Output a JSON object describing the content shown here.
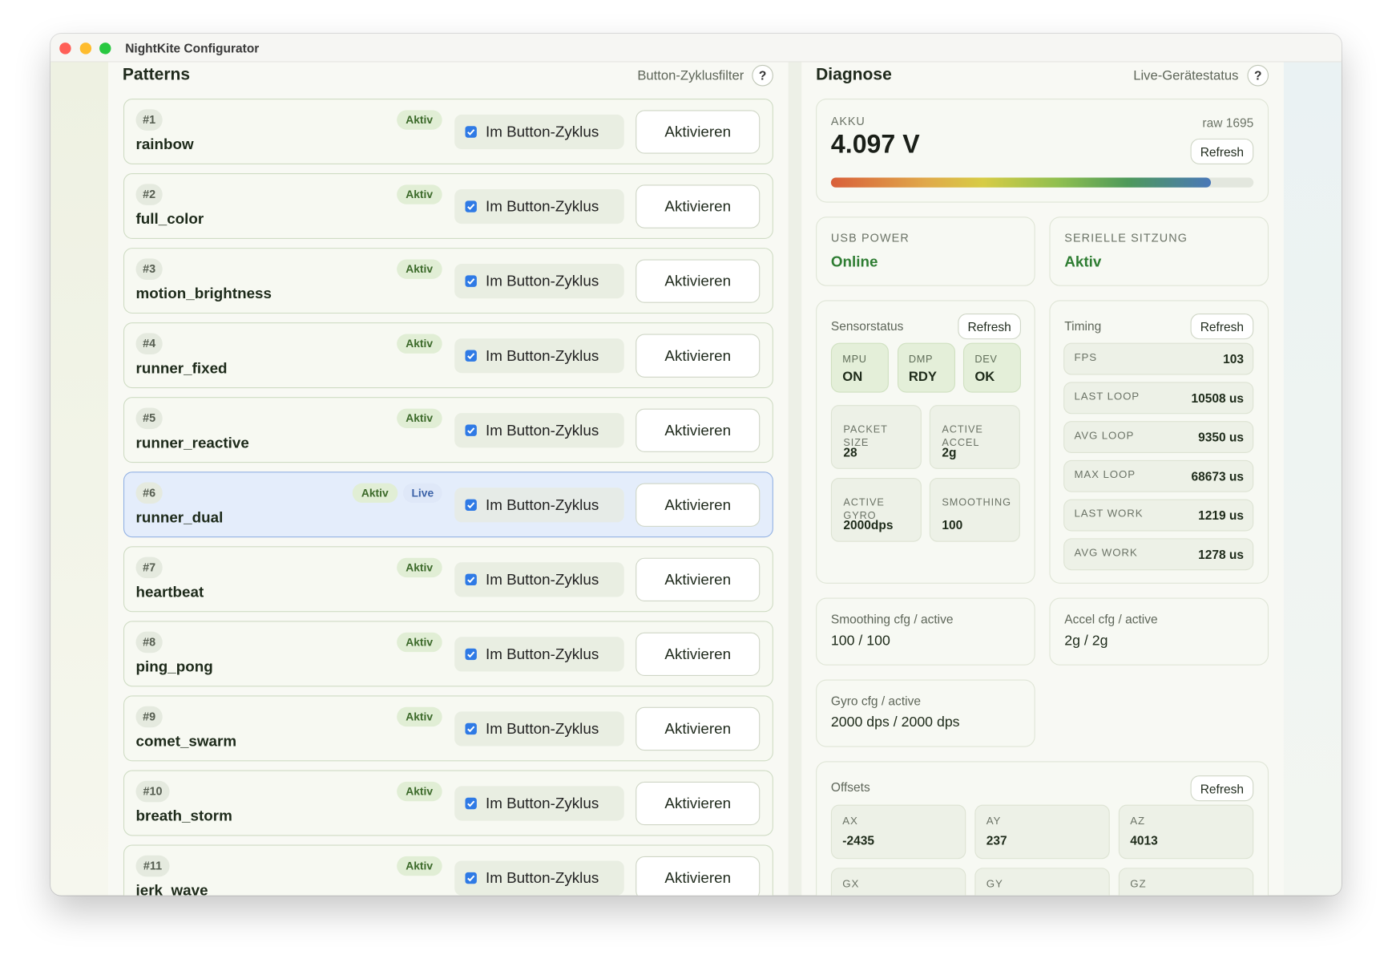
{
  "window": {
    "title": "NightKite Configurator"
  },
  "patterns": {
    "title": "Patterns",
    "filter_label": "Button-Zyklusfilter",
    "help": "?",
    "items": [
      {
        "number": "#1",
        "name": "rainbow",
        "badges": [
          "Aktiv"
        ],
        "checkbox": "Im Button-Zyklus",
        "checked": true,
        "button": "Aktivieren",
        "highlighted": false
      },
      {
        "number": "#2",
        "name": "full_color",
        "badges": [
          "Aktiv"
        ],
        "checkbox": "Im Button-Zyklus",
        "checked": true,
        "button": "Aktivieren",
        "highlighted": false
      },
      {
        "number": "#3",
        "name": "motion_brightness",
        "badges": [
          "Aktiv"
        ],
        "checkbox": "Im Button-Zyklus",
        "checked": true,
        "button": "Aktivieren",
        "highlighted": false
      },
      {
        "number": "#4",
        "name": "runner_fixed",
        "badges": [
          "Aktiv"
        ],
        "checkbox": "Im Button-Zyklus",
        "checked": true,
        "button": "Aktivieren",
        "highlighted": false
      },
      {
        "number": "#5",
        "name": "runner_reactive",
        "badges": [
          "Aktiv"
        ],
        "checkbox": "Im Button-Zyklus",
        "checked": true,
        "button": "Aktivieren",
        "highlighted": false
      },
      {
        "number": "#6",
        "name": "runner_dual",
        "badges": [
          "Aktiv",
          "Live"
        ],
        "checkbox": "Im Button-Zyklus",
        "checked": true,
        "button": "Aktivieren",
        "highlighted": true
      },
      {
        "number": "#7",
        "name": "heartbeat",
        "badges": [
          "Aktiv"
        ],
        "checkbox": "Im Button-Zyklus",
        "checked": true,
        "button": "Aktivieren",
        "highlighted": false
      },
      {
        "number": "#8",
        "name": "ping_pong",
        "badges": [
          "Aktiv"
        ],
        "checkbox": "Im Button-Zyklus",
        "checked": true,
        "button": "Aktivieren",
        "highlighted": false
      },
      {
        "number": "#9",
        "name": "comet_swarm",
        "badges": [
          "Aktiv"
        ],
        "checkbox": "Im Button-Zyklus",
        "checked": true,
        "button": "Aktivieren",
        "highlighted": false
      },
      {
        "number": "#10",
        "name": "breath_storm",
        "badges": [
          "Aktiv"
        ],
        "checkbox": "Im Button-Zyklus",
        "checked": true,
        "button": "Aktivieren",
        "highlighted": false
      },
      {
        "number": "#11",
        "name": "jerk_wave",
        "badges": [
          "Aktiv"
        ],
        "checkbox": "Im Button-Zyklus",
        "checked": true,
        "button": "Aktivieren",
        "highlighted": false
      }
    ]
  },
  "diagnose": {
    "title": "Diagnose",
    "status_label": "Live-Gerätestatus",
    "help": "?",
    "akku": {
      "label": "AKKU",
      "value": "4.097 V",
      "raw": "raw 1695",
      "refresh": "Refresh",
      "level": 90
    },
    "usb": {
      "label": "USB POWER",
      "value": "Online"
    },
    "serial": {
      "label": "SERIELLE SITZUNG",
      "value": "Aktiv"
    },
    "sensors": {
      "title": "Sensorstatus",
      "refresh": "Refresh",
      "flags": [
        {
          "label": "MPU",
          "value": "ON"
        },
        {
          "label": "DMP",
          "value": "RDY"
        },
        {
          "label": "DEV",
          "value": "OK"
        }
      ],
      "stats": [
        {
          "label": "PACKET SIZE",
          "value": "28"
        },
        {
          "label": "ACTIVE ACCEL",
          "value": "2g"
        },
        {
          "label": "ACTIVE GYRO",
          "value": "2000dps"
        },
        {
          "label": "SMOOTHING",
          "value": "100"
        }
      ]
    },
    "timing": {
      "title": "Timing",
      "refresh": "Refresh",
      "rows": [
        {
          "label": "FPS",
          "value": "103"
        },
        {
          "label": "LAST LOOP",
          "value": "10508 us"
        },
        {
          "label": "AVG LOOP",
          "value": "9350 us"
        },
        {
          "label": "MAX LOOP",
          "value": "68673 us"
        },
        {
          "label": "LAST WORK",
          "value": "1219 us"
        },
        {
          "label": "AVG WORK",
          "value": "1278 us"
        }
      ]
    },
    "configs": [
      {
        "label": "Smoothing cfg / active",
        "value": "100 / 100"
      },
      {
        "label": "Accel cfg / active",
        "value": "2g / 2g"
      },
      {
        "label": "Gyro cfg / active",
        "value": "2000 dps / 2000 dps"
      }
    ],
    "offsets": {
      "title": "Offsets",
      "refresh": "Refresh",
      "axes": [
        {
          "label": "AX",
          "value": "-2435"
        },
        {
          "label": "AY",
          "value": "237"
        },
        {
          "label": "AZ",
          "value": "4013"
        },
        {
          "label": "GX"
        },
        {
          "label": "GY"
        },
        {
          "label": "GZ"
        }
      ]
    }
  }
}
